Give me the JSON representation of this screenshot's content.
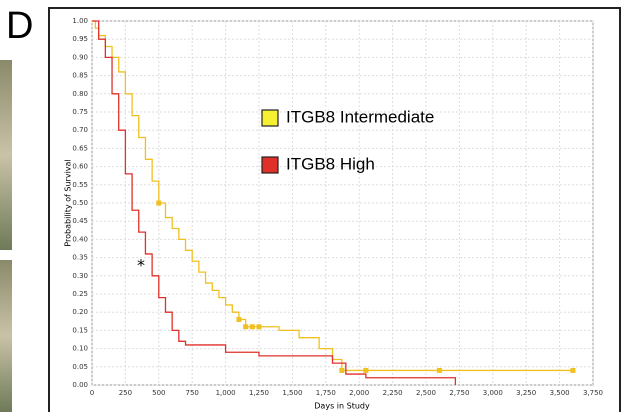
{
  "panel_label": "D",
  "chart_data": {
    "type": "km-step",
    "y_label": "Probability of Survival",
    "x_label": "Days in Study",
    "annotation": "*",
    "xlim": [
      0,
      3750
    ],
    "ylim": [
      0,
      1
    ],
    "grid": true,
    "xticks": [
      0,
      250,
      500,
      750,
      {
        "value": 1000,
        "label": "1,000"
      },
      {
        "value": 1250,
        "label": "1,250"
      },
      {
        "value": 1500,
        "label": "1,500"
      },
      {
        "value": 1750,
        "label": "1,750"
      },
      {
        "value": 2000,
        "label": "2,000"
      },
      {
        "value": 2250,
        "label": "2,250"
      },
      {
        "value": 2500,
        "label": "2,500"
      },
      {
        "value": 2750,
        "label": "2,750"
      },
      {
        "value": 3000,
        "label": "3,000"
      },
      {
        "value": 3250,
        "label": "3,250"
      },
      {
        "value": 3500,
        "label": "3,500"
      },
      {
        "value": 3750,
        "label": "3,750"
      }
    ],
    "yticks": [
      {
        "value": 0,
        "label": "0.00"
      },
      {
        "value": 0.05,
        "label": "0.05"
      },
      {
        "value": 0.1,
        "label": "0.10"
      },
      {
        "value": 0.15,
        "label": "0.15"
      },
      {
        "value": 0.2,
        "label": "0.20"
      },
      {
        "value": 0.25,
        "label": "0.25"
      },
      {
        "value": 0.3,
        "label": "0.30"
      },
      {
        "value": 0.35,
        "label": "0.35"
      },
      {
        "value": 0.4,
        "label": "0.40"
      },
      {
        "value": 0.45,
        "label": "0.45"
      },
      {
        "value": 0.5,
        "label": "0.50"
      },
      {
        "value": 0.55,
        "label": "0.55"
      },
      {
        "value": 0.6,
        "label": "0.60"
      },
      {
        "value": 0.65,
        "label": "0.65"
      },
      {
        "value": 0.7,
        "label": "0.70"
      },
      {
        "value": 0.75,
        "label": "0.75"
      },
      {
        "value": 0.8,
        "label": "0.80"
      },
      {
        "value": 0.85,
        "label": "0.85"
      },
      {
        "value": 0.9,
        "label": "0.90"
      },
      {
        "value": 0.95,
        "label": "0.95"
      },
      {
        "value": 1,
        "label": "1.00"
      }
    ],
    "series": [
      {
        "name": "ITGB8 Intermediate",
        "color": "#f0c020",
        "legend_color": "#f5f032",
        "x": [
          0,
          25,
          50,
          100,
          150,
          200,
          250,
          300,
          350,
          400,
          450,
          500,
          550,
          600,
          650,
          700,
          750,
          800,
          850,
          900,
          950,
          1000,
          1050,
          1100,
          1150,
          1400,
          1550,
          1700,
          1800,
          1870,
          3600
        ],
        "values": [
          1,
          0.98,
          0.96,
          0.93,
          0.9,
          0.86,
          0.8,
          0.74,
          0.68,
          0.62,
          0.56,
          0.5,
          0.46,
          0.43,
          0.4,
          0.37,
          0.34,
          0.31,
          0.28,
          0.26,
          0.24,
          0.22,
          0.2,
          0.18,
          0.16,
          0.15,
          0.13,
          0.1,
          0.07,
          0.04,
          0.04
        ],
        "censored_x": [
          500,
          1100,
          1150,
          1200,
          1250,
          1870,
          2050,
          2600,
          3600
        ],
        "censored_values": [
          0.5,
          0.18,
          0.16,
          0.16,
          0.16,
          0.04,
          0.04,
          0.04,
          0.04
        ]
      },
      {
        "name": "ITGB8 High",
        "color": "#e0302a",
        "legend_color": "#e0302a",
        "x": [
          0,
          50,
          100,
          150,
          200,
          250,
          300,
          350,
          400,
          450,
          500,
          550,
          600,
          650,
          700,
          1000,
          1250,
          1800,
          1900,
          2050,
          2720
        ],
        "values": [
          1,
          0.95,
          0.9,
          0.8,
          0.7,
          0.58,
          0.48,
          0.42,
          0.36,
          0.3,
          0.24,
          0.2,
          0.15,
          0.12,
          0.11,
          0.09,
          0.08,
          0.06,
          0.03,
          0.02,
          0
        ],
        "censored_x": [],
        "censored_values": []
      }
    ]
  }
}
